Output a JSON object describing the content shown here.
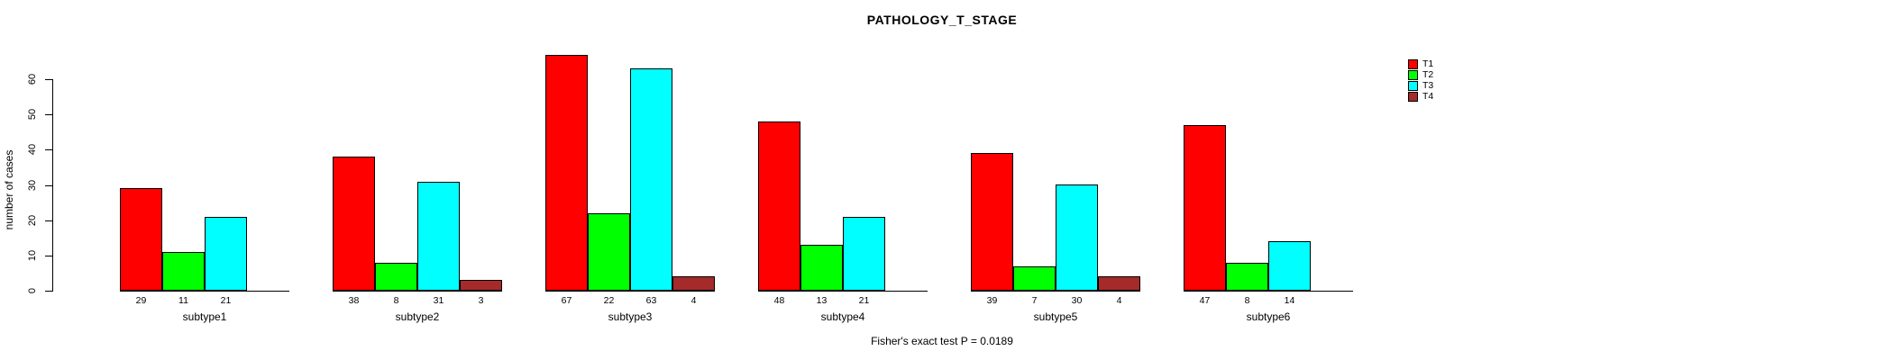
{
  "chart": {
    "title": "PATHOLOGY_T_STAGE",
    "ylabel": "number of cases",
    "footnote": "Fisher's exact test P = 0.0189"
  },
  "chart_data": {
    "type": "bar",
    "title": "PATHOLOGY_T_STAGE",
    "xlabel": "",
    "ylabel": "number of cases",
    "categories": [
      "subtype1",
      "subtype2",
      "subtype3",
      "subtype4",
      "subtype5",
      "subtype6"
    ],
    "series": [
      {
        "name": "T1",
        "color": "#ff0000",
        "values": [
          29,
          38,
          67,
          48,
          39,
          47
        ]
      },
      {
        "name": "T2",
        "color": "#00ff00",
        "values": [
          11,
          8,
          22,
          13,
          7,
          8
        ]
      },
      {
        "name": "T3",
        "color": "#00ffff",
        "values": [
          21,
          31,
          63,
          21,
          30,
          14
        ]
      },
      {
        "name": "T4",
        "color": "#a52a2a",
        "values": [
          null,
          3,
          4,
          null,
          4,
          null
        ]
      }
    ],
    "bar_value_labels": [
      [
        "29",
        "11",
        "21",
        ""
      ],
      [
        "38",
        "8",
        "31",
        "3"
      ],
      [
        "67",
        "22",
        "63",
        "4"
      ],
      [
        "48",
        "13",
        "21",
        ""
      ],
      [
        "39",
        "7",
        "30",
        "4"
      ],
      [
        "47",
        "8",
        "14",
        ""
      ]
    ],
    "yticks": [
      0,
      10,
      20,
      30,
      40,
      50,
      60
    ],
    "ylim": [
      0,
      60
    ],
    "grid": false,
    "legend_position": "right",
    "annotation": "Fisher's exact test P = 0.0189"
  }
}
